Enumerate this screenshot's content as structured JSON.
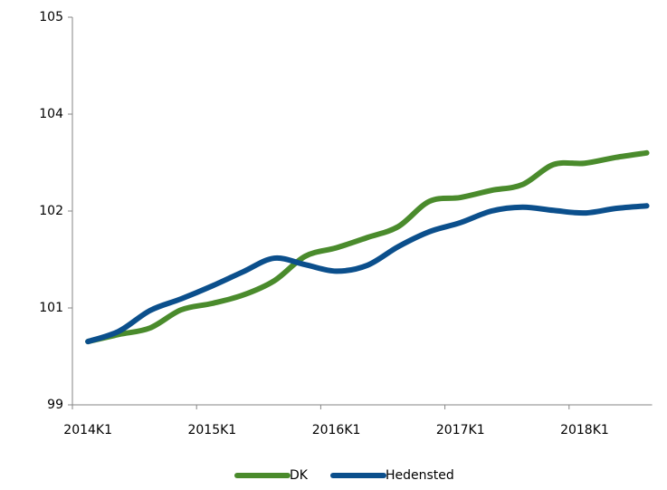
{
  "chart_data": {
    "type": "line",
    "categories": [
      "2014K1",
      null,
      null,
      null,
      "2015K1",
      null,
      null,
      null,
      "2016K1",
      null,
      null,
      null,
      "2017K1",
      null,
      null,
      null,
      "2018K1",
      null,
      null
    ],
    "series": [
      {
        "name": "DK",
        "color": "#4a8b2c",
        "values": [
          99.98,
          100.09,
          100.19,
          100.47,
          100.57,
          100.7,
          100.92,
          101.3,
          101.43,
          101.59,
          101.76,
          102.15,
          102.21,
          102.32,
          102.41,
          102.72,
          102.74,
          102.83,
          102.9
        ]
      },
      {
        "name": "Hedensted",
        "color": "#0b4f8c",
        "values": [
          99.98,
          100.14,
          100.46,
          100.64,
          100.84,
          101.06,
          101.27,
          101.17,
          101.07,
          101.16,
          101.45,
          101.68,
          101.82,
          102.0,
          102.06,
          102.01,
          101.97,
          102.04,
          102.08
        ]
      }
    ],
    "ylim": [
      99,
      105
    ],
    "yticks": [
      99,
      {
        "value": 100.5,
        "label": "101"
      },
      102,
      {
        "value": 103.5,
        "label": "104"
      },
      105
    ],
    "legend": "bottom"
  }
}
